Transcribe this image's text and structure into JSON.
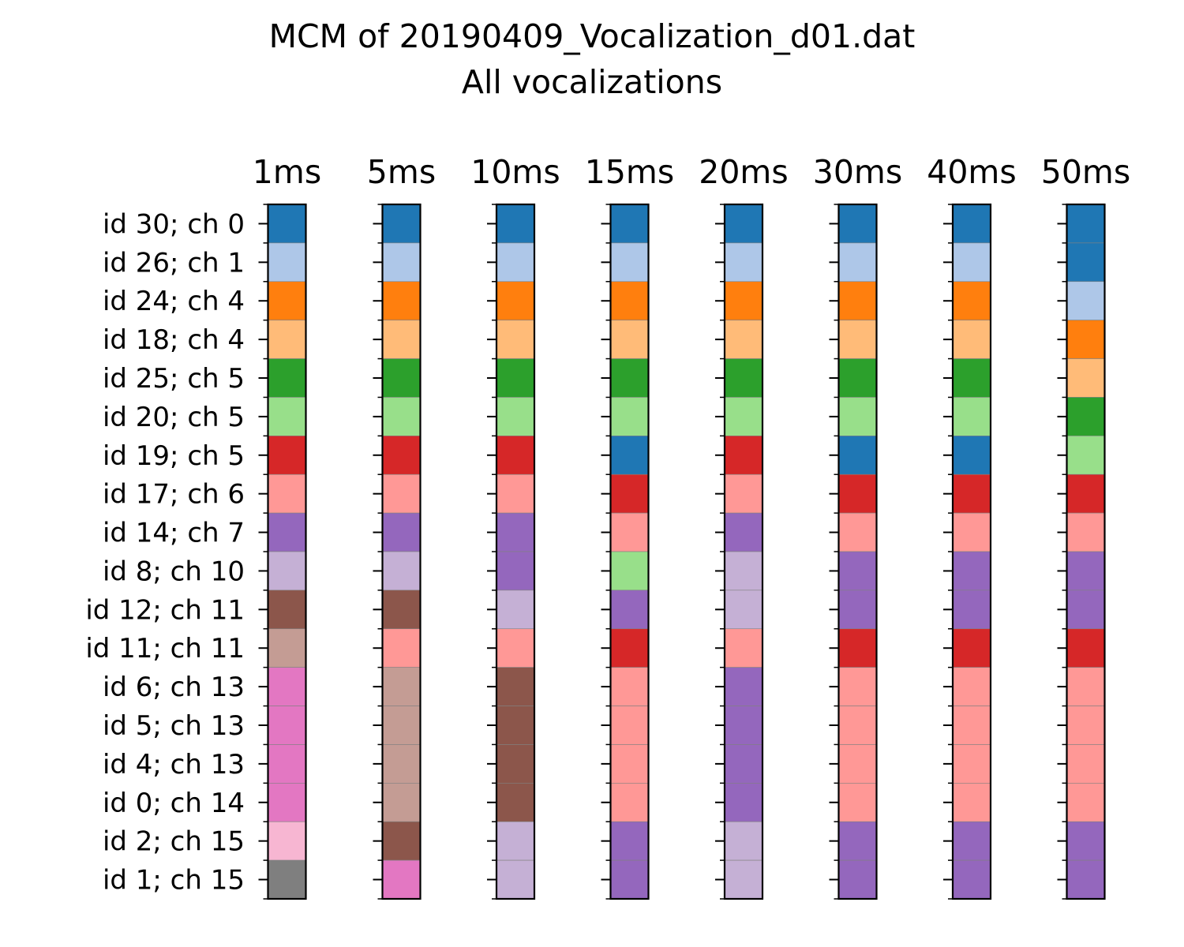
{
  "title_line1": "MCM of 20190409_Vocalization_d01.dat",
  "title_line2": "All vocalizations",
  "chart_data": {
    "type": "heatmap",
    "columns": [
      "1ms",
      "5ms",
      "10ms",
      "15ms",
      "20ms",
      "30ms",
      "40ms",
      "50ms"
    ],
    "rows": [
      "id 30; ch 0",
      "id 26; ch 1",
      "id 24; ch 4",
      "id 18; ch 4",
      "id 25; ch 5",
      "id 20; ch 5",
      "id 19; ch 5",
      "id 17; ch 6",
      "id 14; ch 7",
      "id 8; ch 10",
      "id 12; ch 11",
      "id 11; ch 11",
      "id 6; ch 13",
      "id 5; ch 13",
      "id 4; ch 13",
      "id 0; ch 14",
      "id 2; ch 15",
      "id 1; ch 15"
    ],
    "palette": [
      "#1f77b4",
      "#aec7e8",
      "#ff7f0e",
      "#ffbb78",
      "#2ca02c",
      "#98df8a",
      "#d62728",
      "#ff9896",
      "#9467bd",
      "#c5b0d5",
      "#8c564b",
      "#c49c94",
      "#e377c2",
      "#f7b6d2",
      "#7f7f7f"
    ],
    "cluster_ids": [
      [
        0,
        1,
        2,
        3,
        4,
        5,
        6,
        7,
        8,
        9,
        10,
        11,
        12,
        12,
        12,
        12,
        13,
        14
      ],
      [
        0,
        1,
        2,
        3,
        4,
        5,
        6,
        7,
        8,
        9,
        10,
        7,
        11,
        11,
        11,
        11,
        10,
        12
      ],
      [
        0,
        1,
        2,
        3,
        4,
        5,
        6,
        7,
        8,
        8,
        9,
        7,
        10,
        10,
        10,
        10,
        9,
        9
      ],
      [
        0,
        1,
        2,
        3,
        4,
        5,
        0,
        6,
        7,
        5,
        8,
        6,
        7,
        7,
        7,
        7,
        8,
        8
      ],
      [
        0,
        1,
        2,
        3,
        4,
        5,
        6,
        7,
        8,
        9,
        9,
        7,
        8,
        8,
        8,
        8,
        9,
        9
      ],
      [
        0,
        1,
        2,
        3,
        4,
        5,
        0,
        6,
        7,
        8,
        8,
        6,
        7,
        7,
        7,
        7,
        8,
        8
      ],
      [
        0,
        1,
        2,
        3,
        4,
        5,
        0,
        6,
        7,
        8,
        8,
        6,
        7,
        7,
        7,
        7,
        8,
        8
      ],
      [
        0,
        0,
        1,
        2,
        3,
        4,
        5,
        6,
        7,
        8,
        8,
        6,
        7,
        7,
        7,
        7,
        8,
        8
      ]
    ]
  }
}
